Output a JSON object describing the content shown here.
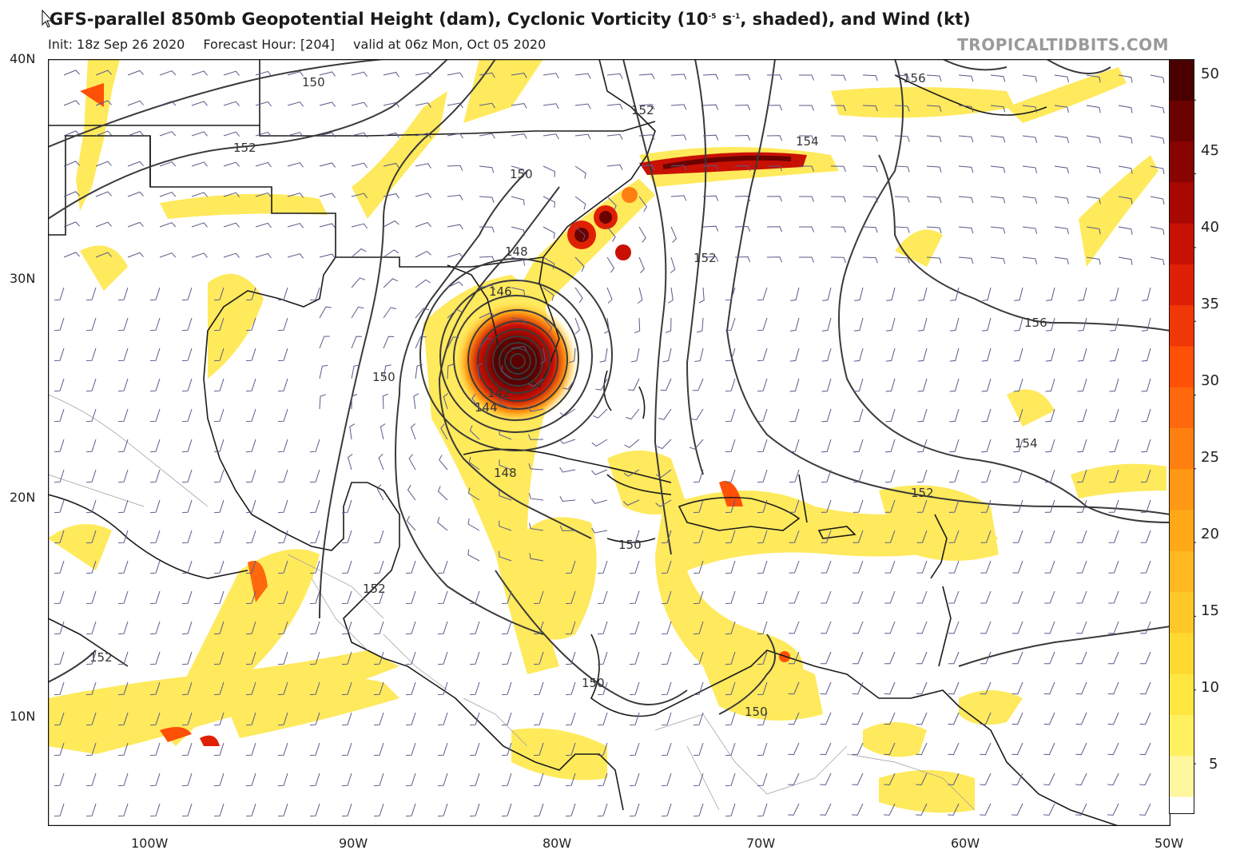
{
  "header": {
    "title_main": "GFS-parallel 850mb Geopotential Height (dam), Cyclonic Vorticity (10",
    "title_exp": "-5",
    "title_mid": " s",
    "title_exp2": "-1",
    "title_end": ", shaded), and Wind (kt)",
    "init": "Init: 18z Sep 26 2020",
    "forecast_hour": "Forecast Hour: [204]",
    "valid": "valid at 06z Mon, Oct 05 2020",
    "brand": "TROPICALTIDBITS.COM"
  },
  "axes": {
    "lat_labels": [
      "40N",
      "30N",
      "20N",
      "10N"
    ],
    "lon_labels": [
      "100W",
      "90W",
      "80W",
      "70W",
      "60W",
      "50W"
    ]
  },
  "colorbar": {
    "ticks": [
      "50",
      "45",
      "40",
      "35",
      "30",
      "25",
      "20",
      "15",
      "10",
      "5"
    ],
    "colors": [
      "#fff7a0",
      "#fff060",
      "#ffe640",
      "#ffd830",
      "#ffc828",
      "#ffb820",
      "#ffa818",
      "#ff9814",
      "#ff8010",
      "#ff680c",
      "#ff5008",
      "#f03806",
      "#e02004",
      "#c81003",
      "#a80802",
      "#880401",
      "#6a0200",
      "#4a0000"
    ]
  },
  "contour_labels": [
    "150",
    "152",
    "150",
    "148",
    "146",
    "150",
    "142",
    "144",
    "148",
    "152",
    "150",
    "152",
    "150",
    "150",
    "152",
    "154",
    "156",
    "156",
    "154",
    "152",
    "152"
  ],
  "icons": {
    "cursor": "arrow-cursor-icon"
  }
}
